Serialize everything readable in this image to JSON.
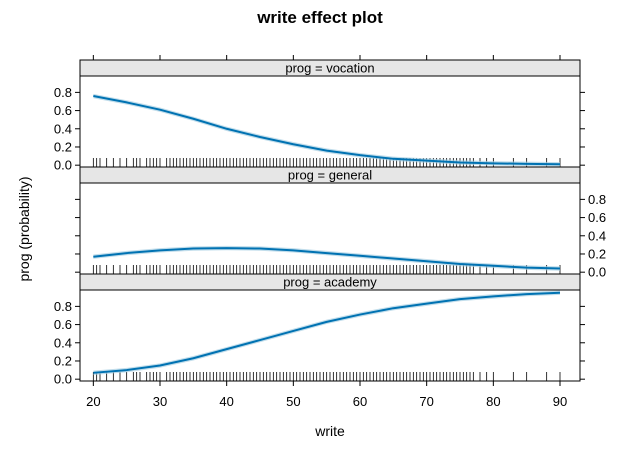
{
  "chart_data": {
    "type": "line",
    "title": "write effect plot",
    "xlabel": "write",
    "ylabel": "prog (probability)",
    "xlim": [
      18,
      93
    ],
    "ylim": [
      -0.02,
      0.98
    ],
    "x_ticks": [
      20,
      30,
      40,
      50,
      60,
      70,
      80,
      90
    ],
    "y_ticks": [
      0.0,
      0.2,
      0.4,
      0.6,
      0.8
    ],
    "y_tick_labels": [
      "0.0",
      "0.2",
      "0.4",
      "0.6",
      "0.8"
    ],
    "line_color": "#0072B2",
    "band_color": "#A6CEE3",
    "panels": [
      {
        "strip": "prog = vocation",
        "x": [
          20,
          25,
          30,
          35,
          40,
          45,
          50,
          55,
          60,
          65,
          70,
          75,
          80,
          85,
          90
        ],
        "y": [
          0.76,
          0.69,
          0.61,
          0.51,
          0.4,
          0.31,
          0.23,
          0.16,
          0.11,
          0.07,
          0.05,
          0.03,
          0.02,
          0.015,
          0.01
        ]
      },
      {
        "strip": "prog = general",
        "x": [
          20,
          25,
          30,
          35,
          40,
          45,
          50,
          55,
          60,
          65,
          70,
          75,
          80,
          85,
          90
        ],
        "y": [
          0.17,
          0.21,
          0.24,
          0.26,
          0.265,
          0.26,
          0.24,
          0.21,
          0.18,
          0.15,
          0.12,
          0.09,
          0.07,
          0.05,
          0.04
        ]
      },
      {
        "strip": "prog = academy",
        "x": [
          20,
          25,
          30,
          35,
          40,
          45,
          50,
          55,
          60,
          65,
          70,
          75,
          80,
          85,
          90
        ],
        "y": [
          0.07,
          0.1,
          0.15,
          0.23,
          0.33,
          0.43,
          0.53,
          0.63,
          0.71,
          0.78,
          0.83,
          0.88,
          0.91,
          0.935,
          0.95
        ]
      }
    ],
    "rug": [
      20,
      20.5,
      21,
      22,
      23,
      24,
      25,
      26,
      26.5,
      27,
      28,
      28.5,
      29,
      29.5,
      30,
      31,
      31.5,
      32,
      32.5,
      33,
      33.5,
      34,
      34.5,
      35,
      35.5,
      36,
      36.5,
      37,
      37.5,
      38,
      38.5,
      39,
      39.5,
      40,
      40.5,
      41,
      41.5,
      42,
      42.5,
      43,
      43.5,
      44,
      44.5,
      45,
      45.5,
      46,
      46.5,
      47,
      47.5,
      48,
      48.5,
      49,
      49.5,
      50,
      50.5,
      51,
      51.5,
      52,
      52.5,
      53,
      53.5,
      54,
      54.5,
      55,
      55.5,
      56,
      56.5,
      57,
      57.5,
      58,
      58.5,
      59,
      59.5,
      60,
      60.5,
      61,
      61.5,
      62,
      62.5,
      63,
      63.5,
      64,
      64.5,
      65,
      65.5,
      66,
      66.5,
      67,
      67.5,
      68,
      68.5,
      69,
      69.5,
      70,
      70.5,
      71,
      71.5,
      72,
      72.5,
      73,
      73.5,
      74,
      74.5,
      75,
      75.5,
      76,
      76.5,
      77,
      78,
      79,
      80,
      83,
      85,
      88,
      90
    ]
  }
}
